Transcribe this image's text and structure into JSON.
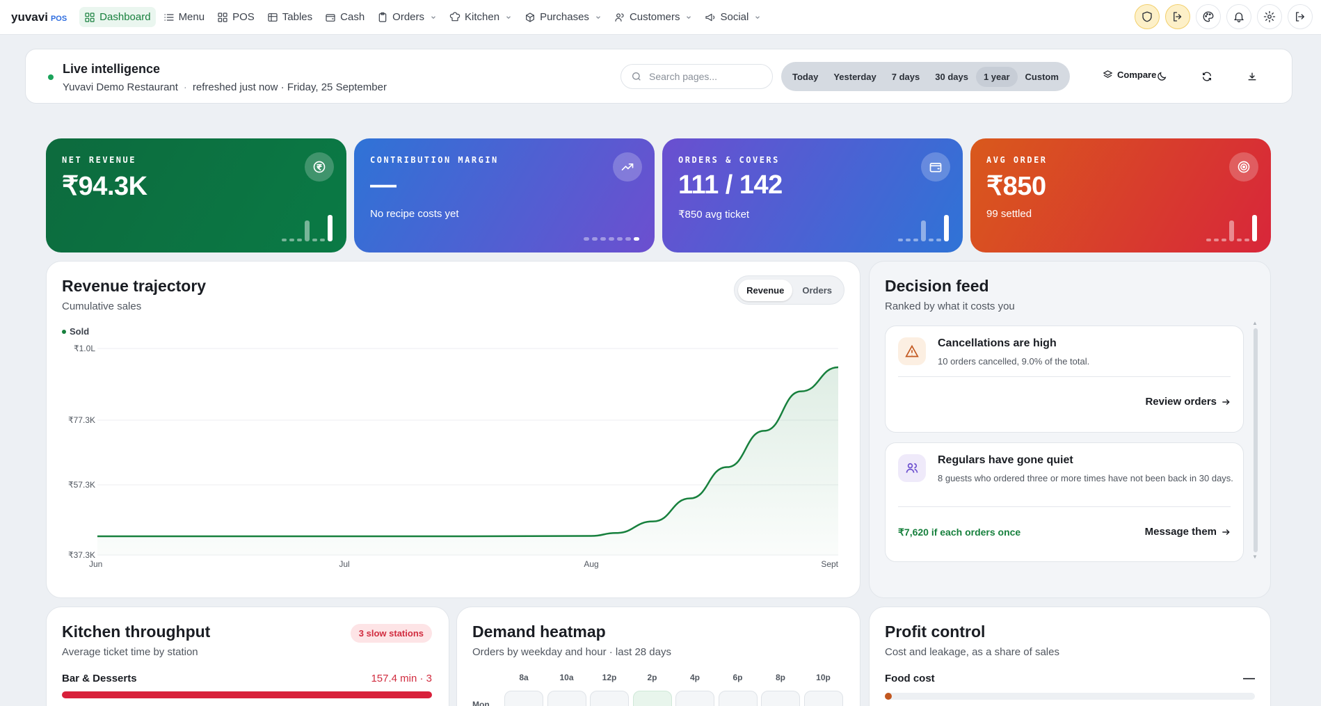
{
  "nav": {
    "brand": "yuvavi",
    "brand_tag": "POS",
    "items": [
      {
        "label": "Dashboard",
        "icon": "grid-icon",
        "active": true
      },
      {
        "label": "Menu",
        "icon": "list-icon"
      },
      {
        "label": "POS",
        "icon": "grid-icon"
      },
      {
        "label": "Tables",
        "icon": "table-icon"
      },
      {
        "label": "Cash",
        "icon": "wallet-icon"
      },
      {
        "label": "Orders",
        "icon": "clipboard-icon",
        "dropdown": true
      },
      {
        "label": "Kitchen",
        "icon": "chef-hat-icon",
        "dropdown": true
      },
      {
        "label": "Purchases",
        "icon": "package-icon",
        "dropdown": true
      },
      {
        "label": "Customers",
        "icon": "users-icon",
        "dropdown": true
      },
      {
        "label": "Social",
        "icon": "megaphone-icon",
        "dropdown": true
      }
    ],
    "right_icons": [
      "shield-icon",
      "exit-icon",
      "palette-icon",
      "bell-icon",
      "gear-icon",
      "logout-icon"
    ]
  },
  "live": {
    "title": "Live intelligence",
    "restaurant": "Yuvavi Demo Restaurant",
    "refreshed": "refreshed just now · Friday, 25 September",
    "search_placeholder": "Search pages...",
    "ranges": [
      "Today",
      "Yesterday",
      "7 days",
      "30 days",
      "1 year",
      "Custom"
    ],
    "active_range": "1 year",
    "compare_label": "Compare"
  },
  "kpis": [
    {
      "label": "NET REVENUE",
      "value": "₹94.3K",
      "sub": "",
      "icon": "rupee-icon",
      "color_from": "#0d6b3e",
      "color_to": "#0a7a45"
    },
    {
      "label": "CONTRIBUTION MARGIN",
      "value": "—",
      "sub": "No recipe costs yet",
      "icon": "trending-up-icon",
      "color_from": "#2f73d6",
      "color_to": "#6c4fcf"
    },
    {
      "label": "ORDERS & COVERS",
      "value": "111 / 142",
      "sub": "₹850 avg ticket",
      "icon": "wallet-icon",
      "color_from": "#6a4fd0",
      "color_to": "#2f73d6"
    },
    {
      "label": "AVG ORDER",
      "value": "₹850",
      "sub": "99 settled",
      "icon": "target-icon",
      "color_from": "#d9591c",
      "color_to": "#d8263a"
    }
  ],
  "revenue": {
    "title": "Revenue trajectory",
    "subtitle": "Cumulative sales",
    "toggle": [
      "Revenue",
      "Orders"
    ],
    "active_toggle": "Revenue"
  },
  "chart_data": {
    "type": "area",
    "title": "Revenue trajectory",
    "series": [
      {
        "name": "Sold",
        "color": "#17803d"
      }
    ],
    "x_ticks": [
      "Jun",
      "Jul",
      "Aug",
      "Sept"
    ],
    "y_ticks": [
      "₹1.0L",
      "₹77.3K",
      "₹57.3K",
      "₹37.3K"
    ],
    "ylim": [
      37300,
      100000
    ],
    "x": [
      0,
      0.5,
      1,
      1.5,
      2,
      2.1,
      2.25,
      2.4,
      2.55,
      2.7,
      2.85,
      3
    ],
    "values": [
      43000,
      43000,
      43000,
      43000,
      43100,
      44000,
      47500,
      54500,
      64000,
      75000,
      87000,
      94300
    ],
    "grid": true,
    "legend": "top-left"
  },
  "feed": {
    "title": "Decision feed",
    "subtitle": "Ranked by what it costs you",
    "items": [
      {
        "title": "Cancellations are high",
        "desc": "10 orders cancelled, 9.0% of the total.",
        "action": "Review orders",
        "gain": "",
        "icon": "alert-triangle-icon",
        "icon_bg": "#fcefe2",
        "icon_color": "#c2571f"
      },
      {
        "title": "Regulars have gone quiet",
        "desc": "8 guests who ordered three or more times have not been back in 30 days.",
        "action": "Message them",
        "gain": "₹7,620 if each orders once",
        "icon": "users-icon",
        "icon_bg": "#efeafa",
        "icon_color": "#6c4fcf"
      }
    ]
  },
  "kitchen": {
    "title": "Kitchen throughput",
    "subtitle": "Average ticket time by station",
    "badge": "3 slow stations",
    "stations": [
      {
        "name": "Bar & Desserts",
        "value": "157.4 min · 3"
      }
    ]
  },
  "heatmap": {
    "title": "Demand heatmap",
    "subtitle": "Orders by weekday and hour · last 28 days",
    "hours": [
      "8a",
      "10a",
      "12p",
      "2p",
      "4p",
      "6p",
      "8p",
      "10p"
    ],
    "days": [
      "Mon"
    ],
    "hot_index": 3
  },
  "profit": {
    "title": "Profit control",
    "subtitle": "Cost and leakage, as a share of sales",
    "rows": [
      {
        "name": "Food cost",
        "value": "—"
      }
    ]
  }
}
